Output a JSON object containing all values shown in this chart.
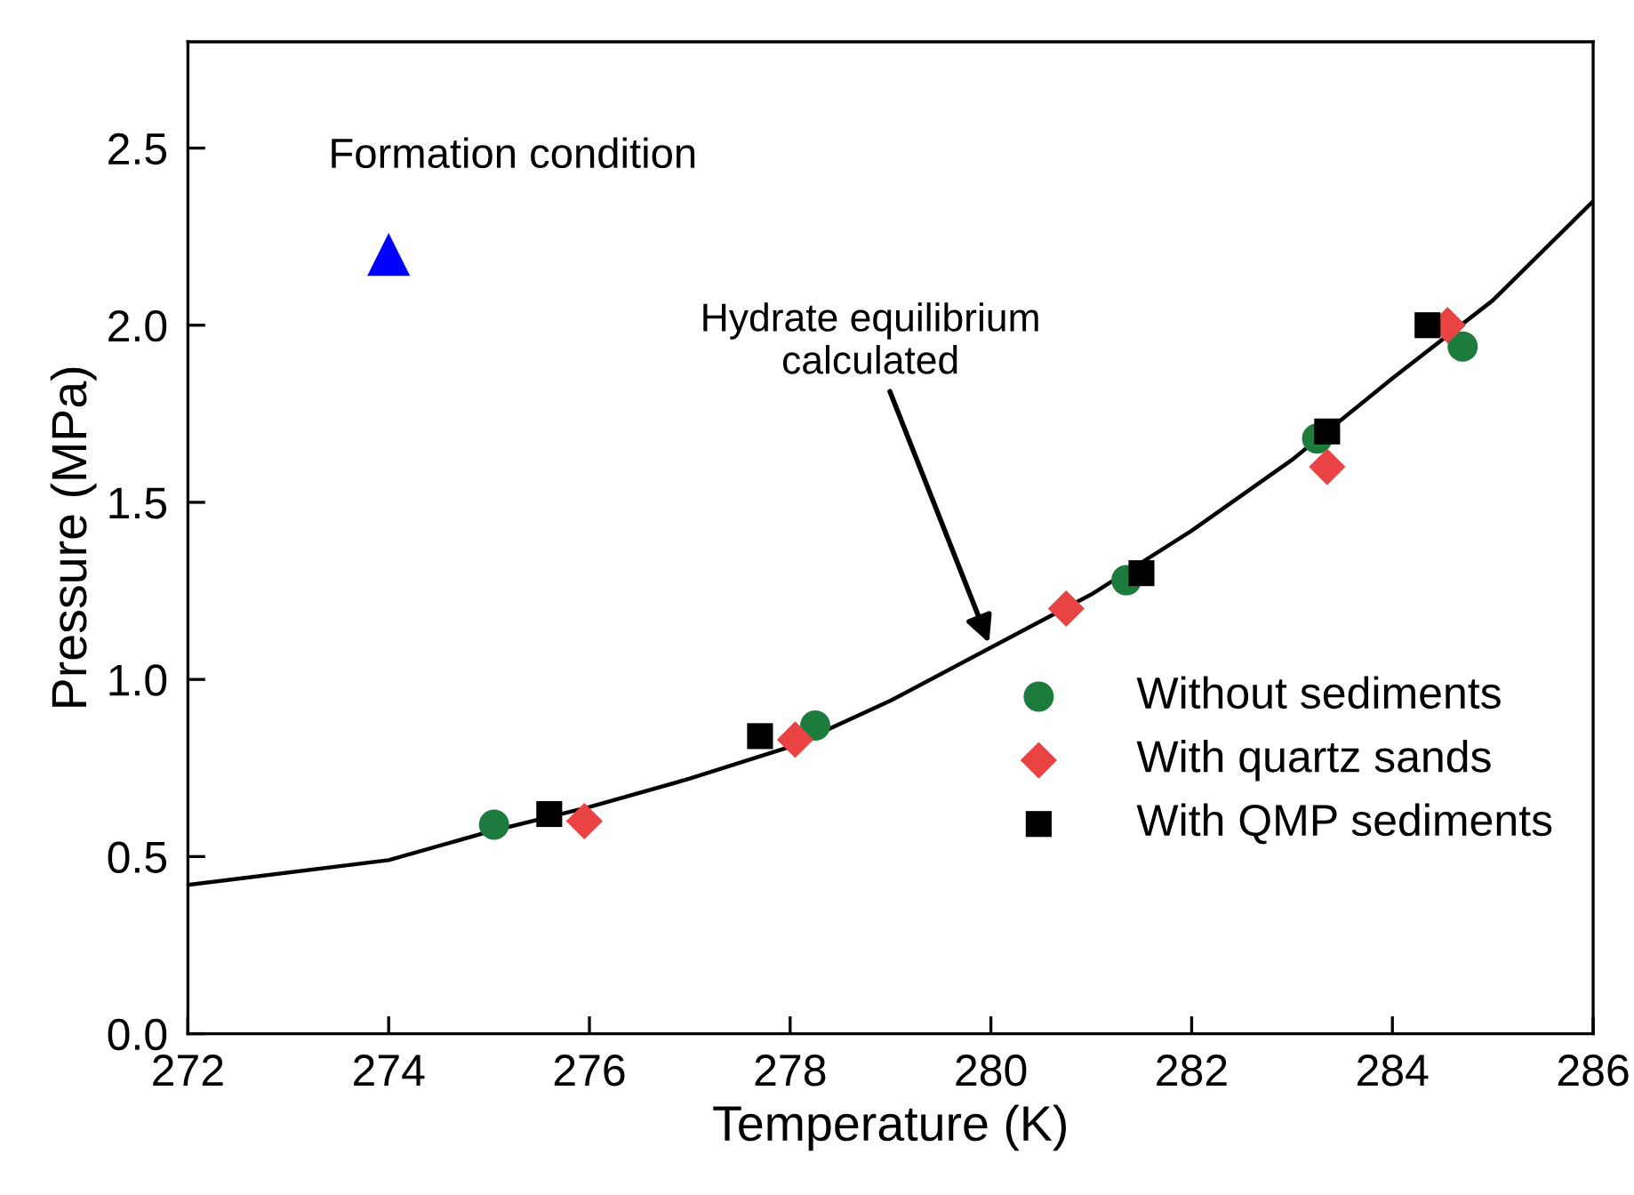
{
  "chart_data": {
    "type": "scatter",
    "xlabel": "Temperature (K)",
    "ylabel": "Pressure (MPa)",
    "xlim": [
      272,
      286
    ],
    "xticks": [
      272,
      274,
      276,
      278,
      280,
      282,
      284,
      286
    ],
    "ylim": [
      0,
      2.8
    ],
    "yticks": [
      {
        "value": 0,
        "label": "0.0"
      },
      0.5,
      {
        "value": 1,
        "label": "1.0"
      },
      1.5,
      {
        "value": 2,
        "label": "2.0"
      },
      2.5
    ],
    "grid": false,
    "legend": "bottom right",
    "annotations": [
      {
        "text": "Formation condition",
        "x": 274,
        "y": 2.2
      },
      {
        "text": "Hydrate equilibrium\ncalculated",
        "x": 280,
        "y": 1.09
      }
    ],
    "series": [
      {
        "type": "line",
        "color": "#000000",
        "marker": "none",
        "line_style": "solid",
        "x": [
          272,
          274,
          275,
          276,
          277,
          278,
          279,
          280,
          281,
          282,
          283,
          284,
          285,
          286
        ],
        "values": [
          0.42,
          0.49,
          0.57,
          0.64,
          0.72,
          0.81,
          0.94,
          1.09,
          1.24,
          1.42,
          1.62,
          1.85,
          2.07,
          2.35
        ]
      },
      {
        "color": "#0000ff",
        "marker": "triangle",
        "x": [
          274
        ],
        "values": [
          2.2
        ]
      },
      {
        "name": "Without sediments",
        "color": "#1e7b3e",
        "marker": "circle",
        "x": [
          275.05,
          278.25,
          281.35,
          283.25,
          284.7
        ],
        "values": [
          0.59,
          0.87,
          1.28,
          1.68,
          1.94
        ]
      },
      {
        "name": "With quartz sands",
        "color": "#ea4343",
        "marker": "diamond",
        "x": [
          275.95,
          278.05,
          280.75,
          283.35,
          284.55
        ],
        "values": [
          0.6,
          0.83,
          1.2,
          1.6,
          2.0
        ]
      },
      {
        "name": "With QMP sediments",
        "color": "#000000",
        "marker": "square",
        "x": [
          275.6,
          277.7,
          281.5,
          283.35,
          284.35
        ],
        "values": [
          0.62,
          0.84,
          1.3,
          1.7,
          2.0
        ]
      }
    ]
  }
}
